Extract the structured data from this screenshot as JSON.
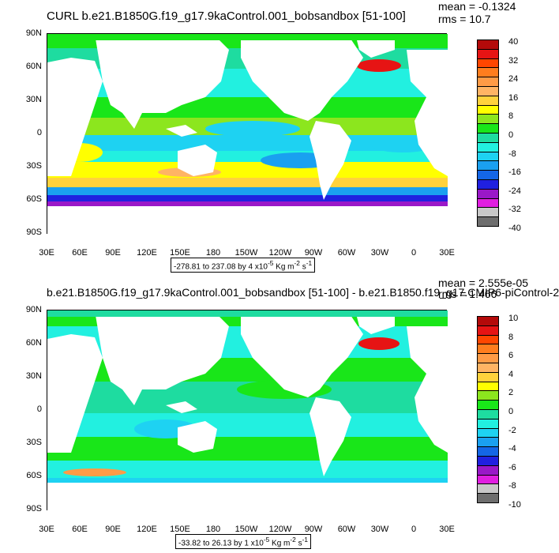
{
  "panels": [
    {
      "title": "CURL b.e21.B1850G.f19_g17.9kaControl.001_bobsandbox [51-100]",
      "mean": "mean = -0.1324",
      "rms": "rms = 10.7",
      "range": "-278.81 to 237.08 by 4 x10",
      "range_exp": "-5",
      "range_units": " Kg m",
      "range_units_exp": "-2",
      "range_units_tail": " s",
      "range_units_tail_exp": "-1",
      "colorbar_labels": [
        "40",
        "32",
        "24",
        "16",
        "8",
        "0",
        "-8",
        "-16",
        "-24",
        "-32",
        "-40"
      ]
    },
    {
      "title": "b.e21.B1850G.f19_g17.9kaControl.001_bobsandbox [51-100] - b.e21.B1850.f19_g17.CMIP6-piControl-2",
      "mean": "mean = 2.555e-05",
      "rms": "rms = 1.466",
      "range": "-33.82 to 26.13 by 1 x10",
      "range_exp": "-5",
      "range_units": " Kg m",
      "range_units_exp": "-2",
      "range_units_tail": " s",
      "range_units_tail_exp": "-1",
      "colorbar_labels": [
        "10",
        "8",
        "6",
        "4",
        "2",
        "0",
        "-2",
        "-4",
        "-6",
        "-8",
        "-10"
      ]
    }
  ],
  "lat_labels": [
    "90N",
    "60N",
    "30N",
    "0",
    "30S",
    "60S",
    "90S"
  ],
  "lon_labels": [
    "30E",
    "60E",
    "90E",
    "120E",
    "150E",
    "180",
    "150W",
    "120W",
    "90W",
    "60W",
    "30W",
    "0",
    "30E"
  ],
  "colors": {
    "palette": [
      "#6e6e6e",
      "#c8c8c8",
      "#e01ee0",
      "#9a18c8",
      "#2020e0",
      "#1466e6",
      "#1aa0f0",
      "#1ed2f2",
      "#22f0e0",
      "#1edca0",
      "#19e619",
      "#8ce61e",
      "#ffff00",
      "#ffd23c",
      "#ffb464",
      "#ff9b46",
      "#ff7d1e",
      "#ff4600",
      "#e61414",
      "#b40a0a"
    ],
    "land": "#ffffff",
    "ocean_base": "#22f0e0"
  }
}
